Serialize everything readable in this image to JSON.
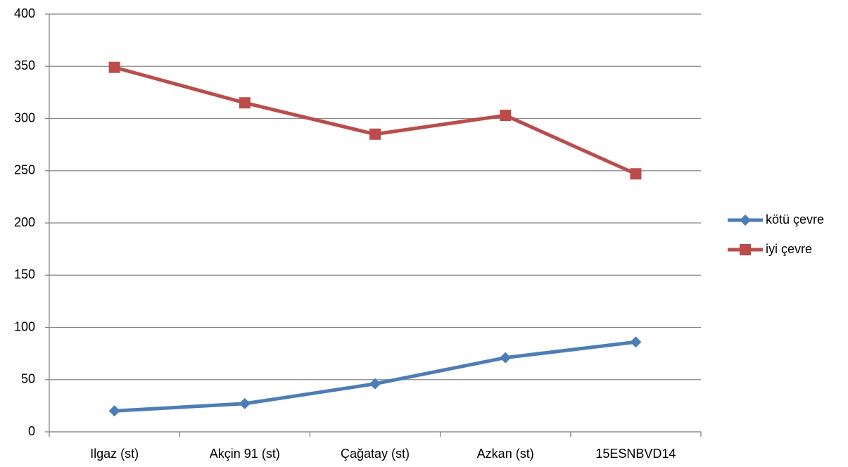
{
  "chart_data": {
    "type": "line",
    "categories": [
      "Ilgaz (st)",
      "Akçin 91 (st)",
      "Çağatay (st)",
      "Azkan (st)",
      "15ESNBVD14"
    ],
    "series": [
      {
        "name": "kötü çevre",
        "color": "#4a7ebb",
        "marker": "diamond",
        "values": [
          20,
          27,
          46,
          71,
          86
        ]
      },
      {
        "name": "iyi çevre",
        "color": "#be4b48",
        "marker": "square",
        "values": [
          349,
          315,
          285,
          303,
          247
        ]
      }
    ],
    "ylim": [
      0,
      400
    ],
    "yticks": [
      0,
      50,
      100,
      150,
      200,
      250,
      300,
      350,
      400
    ],
    "grid": true,
    "legend": "right"
  }
}
